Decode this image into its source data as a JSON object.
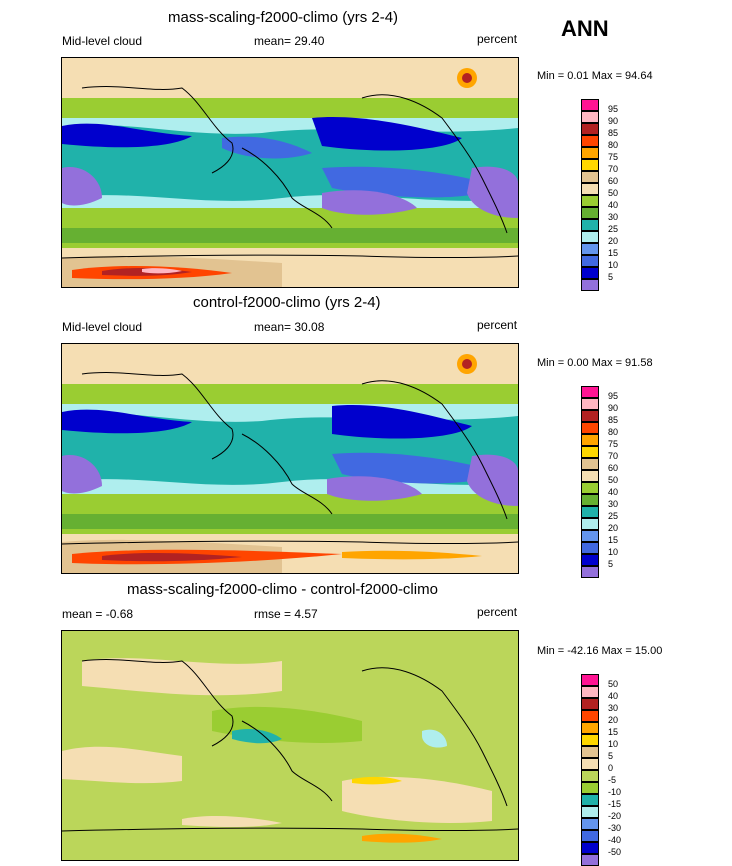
{
  "season": "ANN",
  "panels": [
    {
      "title": "mass-scaling-f2000-climo (yrs 2-4)",
      "left_label": "Mid-level cloud",
      "mid_label": "mean=  29.40",
      "units": "percent",
      "minmax": "Min =   0.01 Max =  94.64",
      "levels": [
        "95",
        "90",
        "85",
        "80",
        "75",
        "70",
        "60",
        "50",
        "40",
        "30",
        "25",
        "20",
        "15",
        "10",
        "5"
      ]
    },
    {
      "title": "control-f2000-climo (yrs 2-4)",
      "left_label": "Mid-level cloud",
      "mid_label": "mean=  30.08",
      "units": "percent",
      "minmax": "Min =   0.00 Max =  91.58",
      "levels": [
        "95",
        "90",
        "85",
        "80",
        "75",
        "70",
        "60",
        "50",
        "40",
        "30",
        "25",
        "20",
        "15",
        "10",
        "5"
      ]
    },
    {
      "title": "mass-scaling-f2000-climo - control-f2000-climo",
      "left_label": "mean =  -0.68",
      "mid_label": "rmse =   4.57",
      "units": "percent",
      "minmax": "Min = -42.16 Max =  15.00",
      "levels": [
        "50",
        "40",
        "30",
        "20",
        "15",
        "10",
        "5",
        "0",
        "-5",
        "-10",
        "-15",
        "-20",
        "-30",
        "-40",
        "-50"
      ]
    }
  ],
  "colors": {
    "abs_scale": [
      "#ff1493",
      "#ffb6c1",
      "#b22222",
      "#ff4500",
      "#ffa500",
      "#ffd700",
      "#e2c391",
      "#f5deb3",
      "#9acd32",
      "#66b032",
      "#20b2aa",
      "#afeeee",
      "#6495ed",
      "#4169e1",
      "#0000cd",
      "#9370db"
    ],
    "diff_scale": [
      "#ff1493",
      "#ffb6c1",
      "#b22222",
      "#ff4500",
      "#ffa500",
      "#ffd700",
      "#e2c391",
      "#f5deb3",
      "#bbd65a",
      "#9acd32",
      "#20b2aa",
      "#afeeee",
      "#6495ed",
      "#4169e1",
      "#0000cd",
      "#9370db"
    ]
  }
}
